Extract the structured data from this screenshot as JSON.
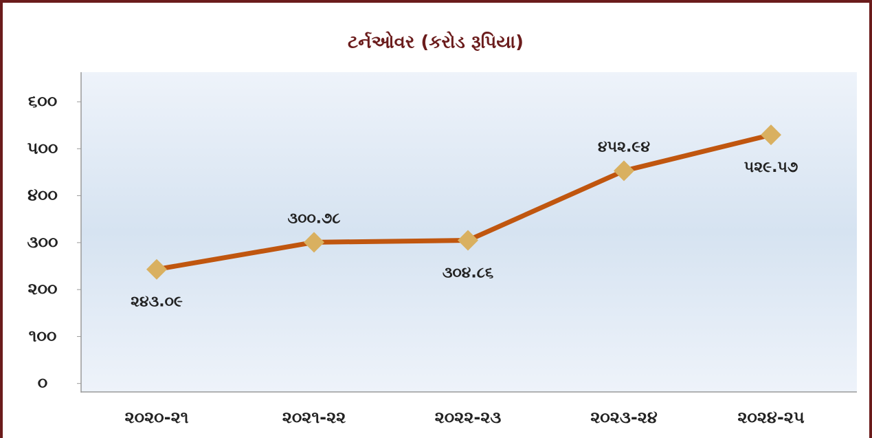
{
  "chart_data": {
    "type": "line",
    "title": "ટર્નઓવર (કરોડ રૂપિયા)",
    "categories": [
      "૨૦૨૦-૨૧",
      "૨૦૨૧-૨૨",
      "૨૦૨૨-૨૩",
      "૨૦૨૩-૨૪",
      "૨૦૨૪-૨૫"
    ],
    "series": [
      {
        "color": "#c0560f",
        "marker_color": "#d9b060",
        "values": [
          243.09,
          300.78,
          304.86,
          452.94,
          529.57
        ],
        "value_labels": [
          "૨૪૩.૦૯",
          "૩૦૦.૭૮",
          "૩૦૪.૮૬",
          "૪૫૨.૯૪",
          "૫૨૯.૫૭"
        ]
      }
    ],
    "ylim": [
      -18,
      663
    ],
    "yticks": [
      {
        "value": 0,
        "label": "૦"
      },
      {
        "value": 100,
        "label": "૧૦૦"
      },
      {
        "value": 200,
        "label": "૨૦૦"
      },
      {
        "value": 300,
        "label": "૩૦૦"
      },
      {
        "value": 400,
        "label": "૪૦૦"
      },
      {
        "value": 500,
        "label": "૫૦૦"
      },
      {
        "value": 600,
        "label": "૬૦૦"
      }
    ],
    "grid": false
  }
}
